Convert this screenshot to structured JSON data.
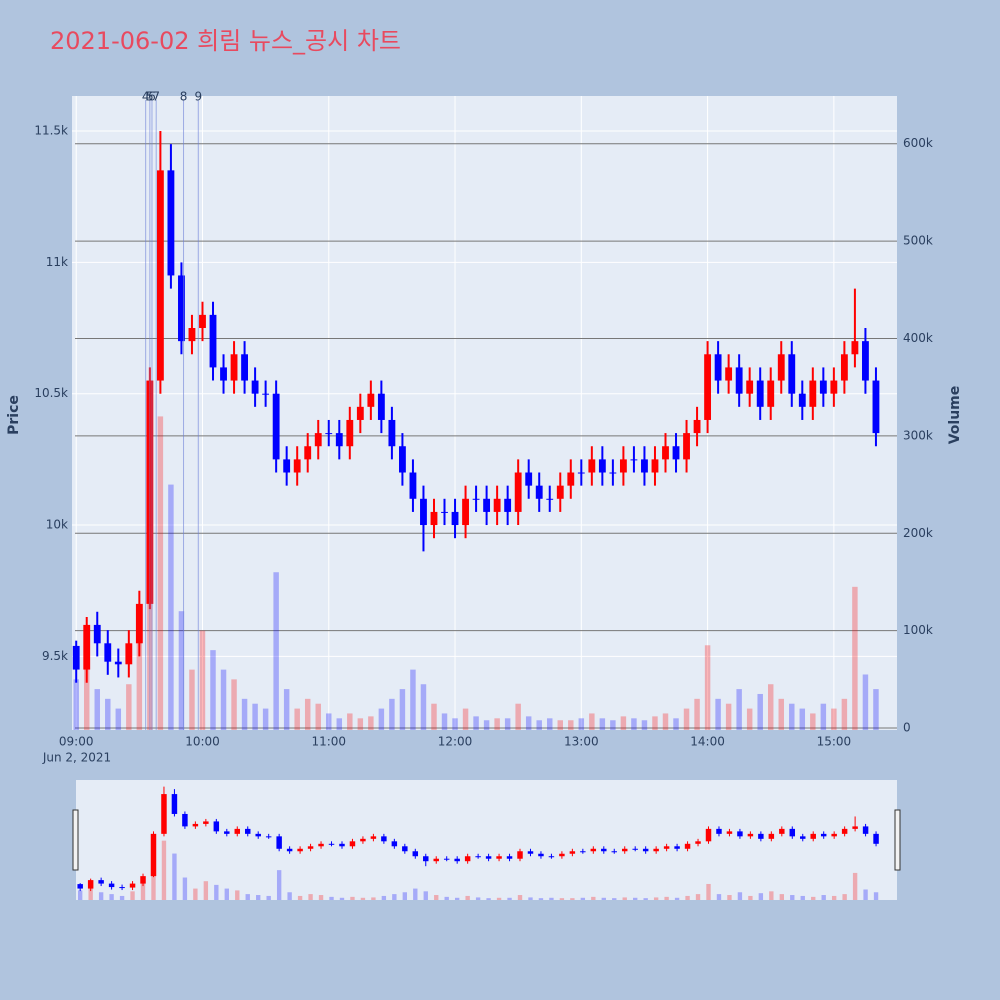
{
  "chart_data": {
    "type": "candlestick",
    "title": "2021-06-02 희림 뉴스_공시 차트",
    "x_date_label": "Jun 2, 2021",
    "ylabel": "Price",
    "y2label": "Volume",
    "increasing_color": "#ff0000",
    "decreasing_color": "#0000ff",
    "grid": true,
    "x": [
      "09:00",
      "09:05",
      "09:10",
      "09:15",
      "09:20",
      "09:25",
      "09:30",
      "09:35",
      "09:40",
      "09:45",
      "09:50",
      "09:55",
      "10:00",
      "10:05",
      "10:10",
      "10:15",
      "10:20",
      "10:25",
      "10:30",
      "10:35",
      "10:40",
      "10:45",
      "10:50",
      "10:55",
      "11:00",
      "11:05",
      "11:10",
      "11:15",
      "11:20",
      "11:25",
      "11:30",
      "11:35",
      "11:40",
      "11:45",
      "11:50",
      "11:55",
      "12:00",
      "12:05",
      "12:10",
      "12:15",
      "12:20",
      "12:25",
      "12:30",
      "12:35",
      "12:40",
      "12:45",
      "12:50",
      "12:55",
      "13:00",
      "13:05",
      "13:10",
      "13:15",
      "13:20",
      "13:25",
      "13:30",
      "13:35",
      "13:40",
      "13:45",
      "13:50",
      "13:55",
      "14:00",
      "14:05",
      "14:10",
      "14:15",
      "14:20",
      "14:25",
      "14:30",
      "14:35",
      "14:40",
      "14:45",
      "14:50",
      "14:55",
      "15:00",
      "15:05",
      "15:10",
      "15:15",
      "15:20"
    ],
    "open": [
      9540,
      9450,
      9620,
      9550,
      9480,
      9470,
      9550,
      9700,
      10550,
      11350,
      10950,
      10700,
      10750,
      10800,
      10600,
      10550,
      10650,
      10550,
      10500,
      10500,
      10250,
      10200,
      10250,
      10300,
      10350,
      10350,
      10300,
      10400,
      10450,
      10500,
      10400,
      10300,
      10200,
      10100,
      10000,
      10050,
      10050,
      10000,
      10100,
      10100,
      10050,
      10100,
      10050,
      10200,
      10150,
      10100,
      10100,
      10150,
      10200,
      10200,
      10250,
      10200,
      10200,
      10250,
      10250,
      10200,
      10250,
      10300,
      10250,
      10350,
      10400,
      10650,
      10550,
      10600,
      10500,
      10550,
      10450,
      10550,
      10650,
      10500,
      10450,
      10550,
      10500,
      10550,
      10650,
      10700,
      10550
    ],
    "high": [
      9560,
      9650,
      9670,
      9600,
      9530,
      9600,
      9750,
      10600,
      11500,
      11450,
      11000,
      10800,
      10850,
      10850,
      10650,
      10700,
      10700,
      10600,
      10550,
      10550,
      10300,
      10300,
      10350,
      10400,
      10400,
      10400,
      10450,
      10500,
      10550,
      10550,
      10450,
      10350,
      10250,
      10150,
      10100,
      10100,
      10100,
      10150,
      10150,
      10150,
      10150,
      10150,
      10250,
      10250,
      10200,
      10150,
      10200,
      10250,
      10250,
      10300,
      10300,
      10250,
      10300,
      10300,
      10300,
      10300,
      10350,
      10350,
      10400,
      10450,
      10700,
      10700,
      10650,
      10650,
      10600,
      10600,
      10600,
      10700,
      10700,
      10550,
      10600,
      10600,
      10600,
      10700,
      10900,
      10750,
      10600
    ],
    "low": [
      9400,
      9400,
      9500,
      9430,
      9420,
      9420,
      9500,
      9680,
      10500,
      10900,
      10650,
      10650,
      10700,
      10550,
      10500,
      10500,
      10500,
      10450,
      10450,
      10200,
      10150,
      10150,
      10200,
      10250,
      10300,
      10250,
      10250,
      10350,
      10400,
      10350,
      10250,
      10150,
      10050,
      9900,
      9950,
      10000,
      9950,
      9950,
      10050,
      10000,
      10000,
      10000,
      10000,
      10100,
      10050,
      10050,
      10050,
      10100,
      10150,
      10150,
      10150,
      10150,
      10150,
      10200,
      10150,
      10150,
      10200,
      10200,
      10200,
      10300,
      10350,
      10500,
      10500,
      10450,
      10450,
      10400,
      10400,
      10500,
      10450,
      10400,
      10400,
      10450,
      10450,
      10500,
      10600,
      10500,
      10300
    ],
    "close": [
      9450,
      9620,
      9550,
      9480,
      9470,
      9550,
      9700,
      10550,
      11350,
      10950,
      10700,
      10750,
      10800,
      10600,
      10550,
      10650,
      10550,
      10500,
      10500,
      10250,
      10200,
      10250,
      10300,
      10350,
      10350,
      10300,
      10400,
      10450,
      10500,
      10400,
      10300,
      10200,
      10100,
      10000,
      10050,
      10050,
      10000,
      10100,
      10100,
      10050,
      10100,
      10050,
      10200,
      10150,
      10100,
      10100,
      10150,
      10200,
      10200,
      10250,
      10200,
      10200,
      10250,
      10250,
      10200,
      10250,
      10300,
      10250,
      10350,
      10400,
      10650,
      10550,
      10600,
      10500,
      10550,
      10450,
      10550,
      10650,
      10500,
      10450,
      10550,
      10500,
      10550,
      10650,
      10700,
      10550,
      10350
    ],
    "volume": [
      50000,
      90000,
      40000,
      30000,
      20000,
      45000,
      120000,
      330000,
      320000,
      250000,
      120000,
      60000,
      100000,
      80000,
      60000,
      50000,
      30000,
      25000,
      20000,
      160000,
      40000,
      20000,
      30000,
      25000,
      15000,
      10000,
      15000,
      10000,
      12000,
      20000,
      30000,
      40000,
      60000,
      45000,
      25000,
      15000,
      10000,
      20000,
      12000,
      8000,
      10000,
      10000,
      25000,
      12000,
      8000,
      10000,
      8000,
      8000,
      10000,
      15000,
      10000,
      8000,
      12000,
      10000,
      8000,
      12000,
      15000,
      10000,
      20000,
      30000,
      85000,
      30000,
      25000,
      40000,
      20000,
      35000,
      45000,
      30000,
      25000,
      20000,
      15000,
      25000,
      20000,
      30000,
      145000,
      55000,
      40000
    ],
    "news": [
      {
        "label": "4",
        "x": "09:33"
      },
      {
        "label": "5",
        "x": "09:35"
      },
      {
        "label": "6",
        "x": "09:36"
      },
      {
        "label": "7",
        "x": "09:38"
      },
      {
        "label": "8",
        "x": "09:51"
      },
      {
        "label": "9",
        "x": "09:58"
      }
    ],
    "xlim": [
      "08:58",
      "15:30"
    ],
    "xticks": [
      "09:00",
      "10:00",
      "11:00",
      "12:00",
      "13:00",
      "14:00",
      "15:00"
    ],
    "ylim": [
      9220,
      11633
    ],
    "yticks": [
      {
        "value": 9500,
        "label": "9.5k"
      },
      {
        "value": 10000,
        "label": "10k"
      },
      {
        "value": 10500,
        "label": "10.5k"
      },
      {
        "value": 11000,
        "label": "11k"
      },
      {
        "value": 11500,
        "label": "11.5k"
      }
    ],
    "y2lim": [
      -2000,
      649000
    ],
    "y2ticks": [
      0,
      {
        "value": 100000,
        "label": "100k"
      },
      {
        "value": 200000,
        "label": "200k"
      },
      {
        "value": 300000,
        "label": "300k"
      },
      {
        "value": 400000,
        "label": "400k"
      },
      {
        "value": 500000,
        "label": "500k"
      },
      {
        "value": 600000,
        "label": "600k"
      }
    ]
  }
}
